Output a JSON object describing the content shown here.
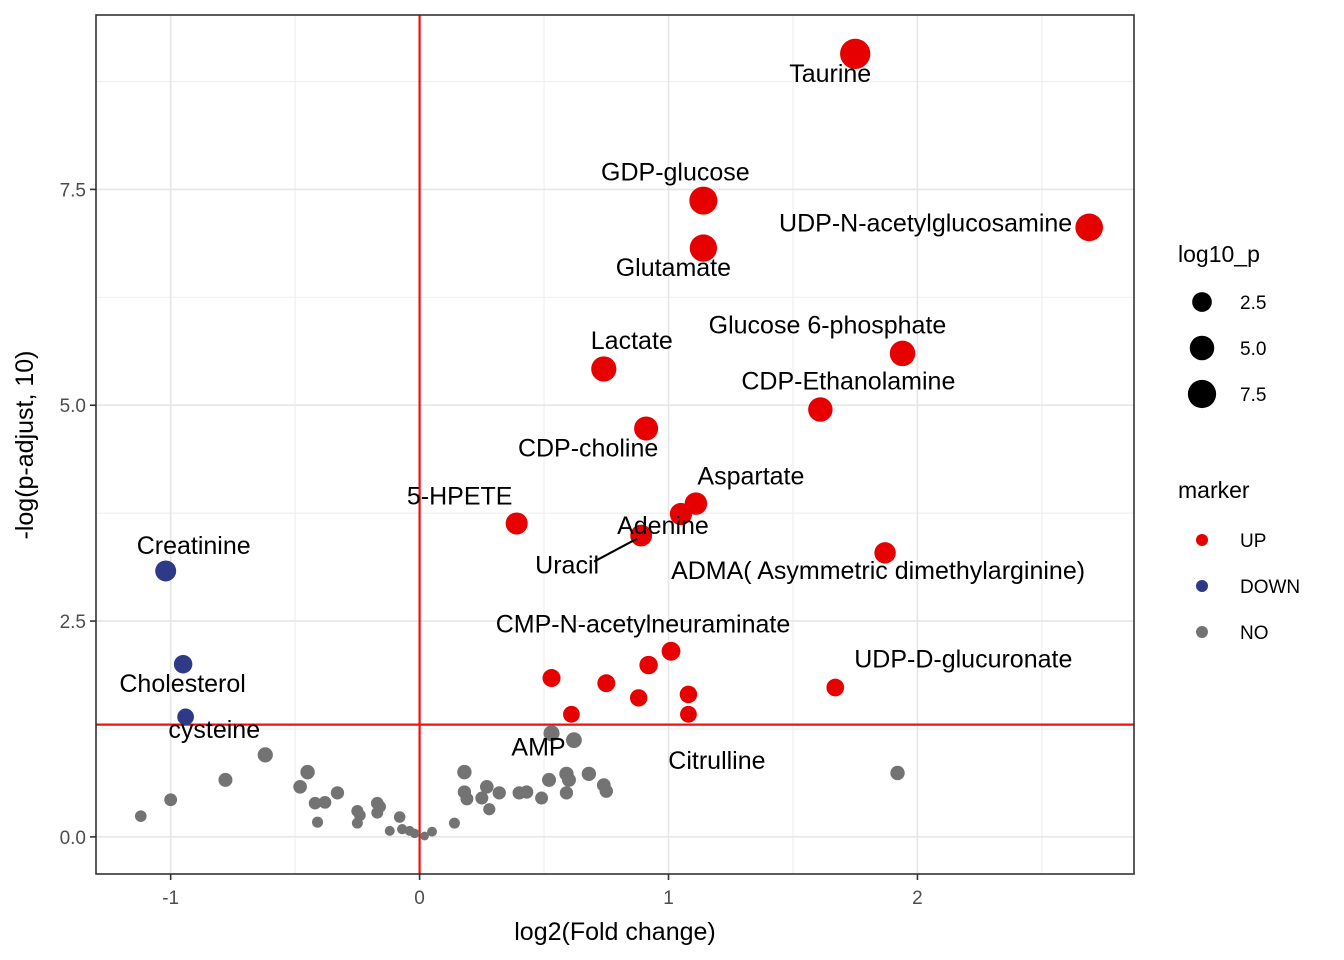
{
  "chart_data": {
    "type": "scatter",
    "xlabel": "log2(Fold change)",
    "ylabel": "-log(p-adjust, 10)",
    "xlim": [
      -1.3,
      2.87
    ],
    "ylim": [
      -0.43,
      9.52
    ],
    "xticks": [
      -1,
      0,
      1,
      2
    ],
    "xtick_labels": [
      "-1",
      "0",
      "1",
      "2"
    ],
    "yticks": [
      0.0,
      2.5,
      5.0,
      7.5
    ],
    "ytick_labels": [
      "0.0",
      "2.5",
      "5.0",
      "7.5"
    ],
    "grid": true,
    "threshold_lines": {
      "x": 0,
      "y": 1.3,
      "color": "#ee1111"
    },
    "colors": {
      "UP": "#e60000",
      "DOWN": "#2e3a87",
      "NO": "#737373"
    },
    "legend_placement": "right",
    "size_legend": {
      "title": "log10_p",
      "values": [
        2.5,
        5.0,
        7.5
      ],
      "labels": [
        "2.5",
        "5.0",
        "7.5"
      ]
    },
    "color_legend": {
      "title": "marker",
      "entries": [
        "UP",
        "DOWN",
        "NO"
      ]
    },
    "points": [
      {
        "x": 1.75,
        "y": 9.07,
        "marker": "UP",
        "label": "Taurine"
      },
      {
        "x": 1.14,
        "y": 7.37,
        "marker": "UP",
        "label": "GDP-glucose"
      },
      {
        "x": 2.69,
        "y": 7.06,
        "marker": "UP",
        "label": "UDP-N-acetylglucosamine"
      },
      {
        "x": 1.14,
        "y": 6.82,
        "marker": "UP",
        "label": "Glutamate"
      },
      {
        "x": 1.94,
        "y": 5.6,
        "marker": "UP",
        "label": "Glucose 6-phosphate"
      },
      {
        "x": 0.74,
        "y": 5.42,
        "marker": "UP",
        "label": "Lactate"
      },
      {
        "x": 1.61,
        "y": 4.95,
        "marker": "UP",
        "label": "CDP-Ethanolamine"
      },
      {
        "x": 0.91,
        "y": 4.73,
        "marker": "UP",
        "label": "CDP-choline"
      },
      {
        "x": 1.11,
        "y": 3.86,
        "marker": "UP",
        "label": "Aspartate"
      },
      {
        "x": 1.05,
        "y": 3.74,
        "marker": "UP",
        "label": "Adenine"
      },
      {
        "x": 0.39,
        "y": 3.63,
        "marker": "UP",
        "label": "5-HPETE"
      },
      {
        "x": 0.89,
        "y": 3.49,
        "marker": "UP",
        "label": "Uracil"
      },
      {
        "x": 1.87,
        "y": 3.29,
        "marker": "UP",
        "label": "ADMA( Asymmetric dimethylarginine)"
      },
      {
        "x": 1.01,
        "y": 2.15,
        "marker": "UP",
        "label": "CMP-N-acetylneuraminate"
      },
      {
        "x": 0.92,
        "y": 1.99,
        "marker": "UP"
      },
      {
        "x": 0.53,
        "y": 1.84,
        "marker": "UP"
      },
      {
        "x": 0.75,
        "y": 1.78,
        "marker": "UP"
      },
      {
        "x": 1.67,
        "y": 1.73,
        "marker": "UP",
        "label": "UDP-D-glucuronate"
      },
      {
        "x": 1.08,
        "y": 1.65,
        "marker": "UP"
      },
      {
        "x": 0.88,
        "y": 1.61,
        "marker": "UP"
      },
      {
        "x": 0.61,
        "y": 1.42,
        "marker": "UP"
      },
      {
        "x": 1.08,
        "y": 1.42,
        "marker": "UP"
      },
      {
        "x": -1.02,
        "y": 3.08,
        "marker": "DOWN",
        "label": "Creatinine"
      },
      {
        "x": -0.95,
        "y": 2.0,
        "marker": "DOWN"
      },
      {
        "x": -0.94,
        "y": 1.39,
        "marker": "DOWN",
        "label": "Cholesterol"
      },
      {
        "x": 0.53,
        "y": 1.2,
        "marker": "NO",
        "label": "AMP"
      },
      {
        "x": 0.62,
        "y": 1.12,
        "marker": "NO",
        "label": "Citrulline"
      },
      {
        "x": -0.62,
        "y": 0.95,
        "marker": "NO",
        "label": "cysteine"
      },
      {
        "x": 1.92,
        "y": 0.74,
        "marker": "NO"
      },
      {
        "x": -1.12,
        "y": 0.24,
        "marker": "NO"
      },
      {
        "x": -1.0,
        "y": 0.43,
        "marker": "NO"
      },
      {
        "x": -0.78,
        "y": 0.66,
        "marker": "NO"
      },
      {
        "x": -0.48,
        "y": 0.58,
        "marker": "NO"
      },
      {
        "x": -0.45,
        "y": 0.75,
        "marker": "NO"
      },
      {
        "x": -0.42,
        "y": 0.39,
        "marker": "NO"
      },
      {
        "x": -0.38,
        "y": 0.4,
        "marker": "NO"
      },
      {
        "x": -0.41,
        "y": 0.17,
        "marker": "NO"
      },
      {
        "x": -0.33,
        "y": 0.51,
        "marker": "NO"
      },
      {
        "x": -0.25,
        "y": 0.3,
        "marker": "NO"
      },
      {
        "x": -0.24,
        "y": 0.25,
        "marker": "NO"
      },
      {
        "x": -0.25,
        "y": 0.16,
        "marker": "NO"
      },
      {
        "x": -0.17,
        "y": 0.39,
        "marker": "NO"
      },
      {
        "x": -0.16,
        "y": 0.35,
        "marker": "NO"
      },
      {
        "x": -0.17,
        "y": 0.28,
        "marker": "NO"
      },
      {
        "x": -0.08,
        "y": 0.23,
        "marker": "NO"
      },
      {
        "x": -0.12,
        "y": 0.07,
        "marker": "NO"
      },
      {
        "x": -0.07,
        "y": 0.09,
        "marker": "NO"
      },
      {
        "x": -0.04,
        "y": 0.07,
        "marker": "NO"
      },
      {
        "x": -0.02,
        "y": 0.04,
        "marker": "NO"
      },
      {
        "x": 0.02,
        "y": 0.01,
        "marker": "NO"
      },
      {
        "x": 0.05,
        "y": 0.06,
        "marker": "NO"
      },
      {
        "x": 0.14,
        "y": 0.16,
        "marker": "NO"
      },
      {
        "x": 0.18,
        "y": 0.75,
        "marker": "NO"
      },
      {
        "x": 0.18,
        "y": 0.52,
        "marker": "NO"
      },
      {
        "x": 0.19,
        "y": 0.44,
        "marker": "NO"
      },
      {
        "x": 0.25,
        "y": 0.45,
        "marker": "NO"
      },
      {
        "x": 0.27,
        "y": 0.58,
        "marker": "NO"
      },
      {
        "x": 0.28,
        "y": 0.32,
        "marker": "NO"
      },
      {
        "x": 0.32,
        "y": 0.51,
        "marker": "NO"
      },
      {
        "x": 0.4,
        "y": 0.51,
        "marker": "NO"
      },
      {
        "x": 0.43,
        "y": 0.52,
        "marker": "NO"
      },
      {
        "x": 0.49,
        "y": 0.45,
        "marker": "NO"
      },
      {
        "x": 0.52,
        "y": 0.66,
        "marker": "NO"
      },
      {
        "x": 0.59,
        "y": 0.73,
        "marker": "NO"
      },
      {
        "x": 0.59,
        "y": 0.51,
        "marker": "NO"
      },
      {
        "x": 0.6,
        "y": 0.66,
        "marker": "NO"
      },
      {
        "x": 0.68,
        "y": 0.73,
        "marker": "NO"
      },
      {
        "x": 0.74,
        "y": 0.6,
        "marker": "NO"
      },
      {
        "x": 0.75,
        "y": 0.53,
        "marker": "NO"
      }
    ]
  }
}
